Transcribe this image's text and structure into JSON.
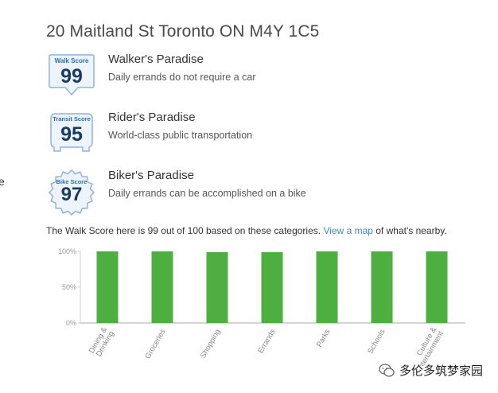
{
  "edge_fragment": "e",
  "address": "20 Maitland St Toronto ON M4Y 1C5",
  "scores": [
    {
      "badge_label": "Walk Score",
      "value": "99",
      "title": "Walker's Paradise",
      "description": "Daily errands do not require a car"
    },
    {
      "badge_label": "Transit Score",
      "value": "95",
      "title": "Rider's Paradise",
      "description": "World-class public transportation"
    },
    {
      "badge_label": "Bike Score",
      "value": "97",
      "title": "Biker's Paradise",
      "description": "Daily errands can be accomplished on a bike"
    }
  ],
  "summary": {
    "before": "The Walk Score here is 99 out of 100 based on these categories. ",
    "link": "View a map",
    "after": " of what's nearby."
  },
  "colors": {
    "bar": "#4caf3f",
    "badge_fill": "#eef4fb",
    "badge_stroke": "#8fb3dc",
    "badge_number": "#183a63",
    "link": "#2f8fd6"
  },
  "chart_data": {
    "type": "bar",
    "categories": [
      "Dining & Drinking",
      "Groceries",
      "Shopping",
      "Errands",
      "Parks",
      "Schools",
      "Culture & Entertainment"
    ],
    "category_lines": [
      [
        "Dining &",
        "Drinking"
      ],
      [
        "Groceries"
      ],
      [
        "Shopping"
      ],
      [
        "Errands"
      ],
      [
        "Parks"
      ],
      [
        "Schools"
      ],
      [
        "Culture &",
        "Entertainment"
      ]
    ],
    "values": [
      100,
      100,
      99,
      99,
      100,
      100,
      100
    ],
    "ylim": [
      0,
      100
    ],
    "yticks": [
      {
        "value": 100,
        "label": "100%"
      },
      {
        "value": 50,
        "label": "50%"
      },
      {
        "value": 0,
        "label": "0%"
      }
    ],
    "grid": false,
    "title": "",
    "xlabel": "",
    "ylabel": ""
  },
  "watermark": {
    "text": "多伦多筑梦家园"
  }
}
